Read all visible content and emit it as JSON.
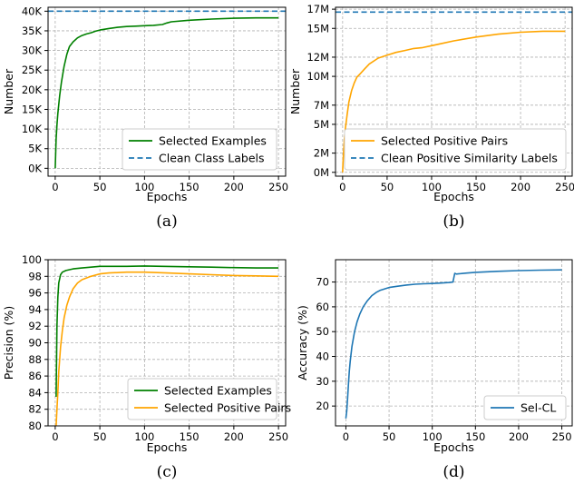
{
  "chart_data": [
    {
      "id": "a",
      "type": "line",
      "caption": "(a)",
      "xlabel": "Epochs",
      "ylabel": "Number",
      "xlim": [
        -8,
        258
      ],
      "ylim": [
        -2000,
        41000
      ],
      "xticks": [
        0,
        50,
        100,
        150,
        200,
        250
      ],
      "xtick_labels": [
        "0",
        "50",
        "100",
        "150",
        "200",
        "250"
      ],
      "yticks": [
        0,
        5000,
        10000,
        15000,
        20000,
        25000,
        30000,
        35000,
        40000
      ],
      "ytick_labels": [
        "0K",
        "5K",
        "10K",
        "15K",
        "20K",
        "25K",
        "30K",
        "35K",
        "40K"
      ],
      "grid": true,
      "legend_position": "bottom-right",
      "series": [
        {
          "name": "Selected Examples",
          "color": "#008000",
          "style": "solid",
          "x": [
            0,
            1,
            2,
            3,
            5,
            7,
            10,
            13,
            16,
            20,
            25,
            30,
            35,
            40,
            45,
            50,
            60,
            70,
            80,
            90,
            100,
            110,
            120,
            125,
            130,
            150,
            175,
            200,
            225,
            250
          ],
          "y": [
            0,
            7500,
            11000,
            14000,
            18500,
            22000,
            26000,
            29000,
            31000,
            32200,
            33200,
            33800,
            34200,
            34500,
            34900,
            35200,
            35600,
            35900,
            36100,
            36200,
            36300,
            36400,
            36600,
            37000,
            37300,
            37700,
            38000,
            38200,
            38300,
            38300
          ]
        },
        {
          "name": "Clean Class Labels",
          "color": "#1f77b4",
          "style": "dashed",
          "x": [
            -8,
            258
          ],
          "y": [
            40000,
            40000
          ]
        }
      ]
    },
    {
      "id": "b",
      "type": "line",
      "caption": "(b)",
      "xlabel": "Epochs",
      "ylabel": "Number",
      "xlim": [
        -8,
        258
      ],
      "ylim": [
        -400000,
        17200000
      ],
      "xticks": [
        0,
        50,
        100,
        150,
        200,
        250
      ],
      "xtick_labels": [
        "0",
        "50",
        "100",
        "150",
        "200",
        "250"
      ],
      "yticks": [
        0,
        2000000,
        5000000,
        7000000,
        10000000,
        12000000,
        15000000,
        17000000
      ],
      "ytick_labels": [
        "0M",
        "2M",
        "5M",
        "7M",
        "10M",
        "12M",
        "15M",
        "17M"
      ],
      "grid": true,
      "legend_position": "bottom-right",
      "series": [
        {
          "name": "Selected Positive Pairs",
          "color": "#ffa500",
          "style": "solid",
          "x": [
            0,
            1,
            2,
            3,
            5,
            7,
            10,
            13,
            16,
            20,
            25,
            30,
            40,
            50,
            60,
            70,
            80,
            90,
            100,
            110,
            125,
            150,
            175,
            200,
            225,
            250
          ],
          "y": [
            0,
            2000000,
            3500000,
            4500000,
            6000000,
            7300000,
            8500000,
            9300000,
            9900000,
            10300000,
            10800000,
            11300000,
            11900000,
            12200000,
            12500000,
            12700000,
            12900000,
            13000000,
            13200000,
            13400000,
            13700000,
            14100000,
            14400000,
            14600000,
            14700000,
            14700000
          ]
        },
        {
          "name": "Clean Positive Similarity Labels",
          "color": "#1f77b4",
          "style": "dashed",
          "x": [
            -8,
            258
          ],
          "y": [
            16700000,
            16700000
          ]
        }
      ]
    },
    {
      "id": "c",
      "type": "line",
      "caption": "(c)",
      "xlabel": "Epochs",
      "ylabel": "Precision (%)",
      "xlim": [
        -8,
        258
      ],
      "ylim": [
        80,
        100
      ],
      "xticks": [
        0,
        50,
        100,
        150,
        200,
        250
      ],
      "xtick_labels": [
        "0",
        "50",
        "100",
        "150",
        "200",
        "250"
      ],
      "yticks": [
        80,
        82,
        84,
        86,
        88,
        90,
        92,
        94,
        96,
        98,
        100
      ],
      "ytick_labels": [
        "80",
        "82",
        "84",
        "86",
        "88",
        "90",
        "92",
        "94",
        "96",
        "98",
        "100"
      ],
      "grid": true,
      "legend_position": "bottom-right",
      "series": [
        {
          "name": "Selected Examples",
          "color": "#008000",
          "style": "solid",
          "x": [
            1,
            2,
            3,
            4,
            6,
            8,
            12,
            16,
            20,
            30,
            40,
            50,
            60,
            80,
            100,
            120,
            150,
            175,
            200,
            225,
            250
          ],
          "y": [
            83.5,
            92,
            95.5,
            97.2,
            98.2,
            98.5,
            98.7,
            98.8,
            98.9,
            99.0,
            99.1,
            99.2,
            99.2,
            99.2,
            99.25,
            99.2,
            99.15,
            99.1,
            99.05,
            99.0,
            99.0
          ]
        },
        {
          "name": "Selected Positive Pairs",
          "color": "#ffa500",
          "style": "solid",
          "x": [
            1,
            2,
            3,
            4,
            6,
            8,
            10,
            13,
            16,
            20,
            25,
            30,
            40,
            50,
            60,
            80,
            100,
            125,
            150,
            175,
            200,
            225,
            250
          ],
          "y": [
            80,
            82,
            84,
            86.5,
            89.5,
            91.5,
            93,
            94.5,
            95.5,
            96.5,
            97.2,
            97.6,
            98.0,
            98.3,
            98.4,
            98.5,
            98.5,
            98.4,
            98.3,
            98.2,
            98.1,
            98.05,
            98.0
          ]
        }
      ]
    },
    {
      "id": "d",
      "type": "line",
      "caption": "(d)",
      "xlabel": "Epochs",
      "ylabel": "Accuracy (%)",
      "xlim": [
        -12,
        262
      ],
      "ylim": [
        12,
        79
      ],
      "xticks": [
        0,
        50,
        100,
        150,
        200,
        250
      ],
      "xtick_labels": [
        "0",
        "50",
        "100",
        "150",
        "200",
        "250"
      ],
      "yticks": [
        20,
        30,
        40,
        50,
        60,
        70
      ],
      "ytick_labels": [
        "20",
        "30",
        "40",
        "50",
        "60",
        "70"
      ],
      "grid": true,
      "legend_position": "bottom-right",
      "series": [
        {
          "name": "Sel-CL",
          "color": "#1f77b4",
          "style": "solid",
          "x": [
            0,
            1,
            2,
            3,
            4,
            5,
            7,
            10,
            13,
            16,
            20,
            25,
            30,
            35,
            40,
            50,
            60,
            70,
            80,
            90,
            100,
            110,
            120,
            124,
            126,
            128,
            130,
            140,
            150,
            175,
            200,
            225,
            250
          ],
          "y": [
            15,
            18,
            23,
            29,
            34,
            38,
            44,
            50,
            54,
            57,
            60,
            62.5,
            64.5,
            65.8,
            66.7,
            67.8,
            68.3,
            68.8,
            69.1,
            69.3,
            69.4,
            69.6,
            69.8,
            70.0,
            73.5,
            73.2,
            73.3,
            73.6,
            73.9,
            74.3,
            74.6,
            74.8,
            74.9
          ]
        }
      ]
    }
  ]
}
